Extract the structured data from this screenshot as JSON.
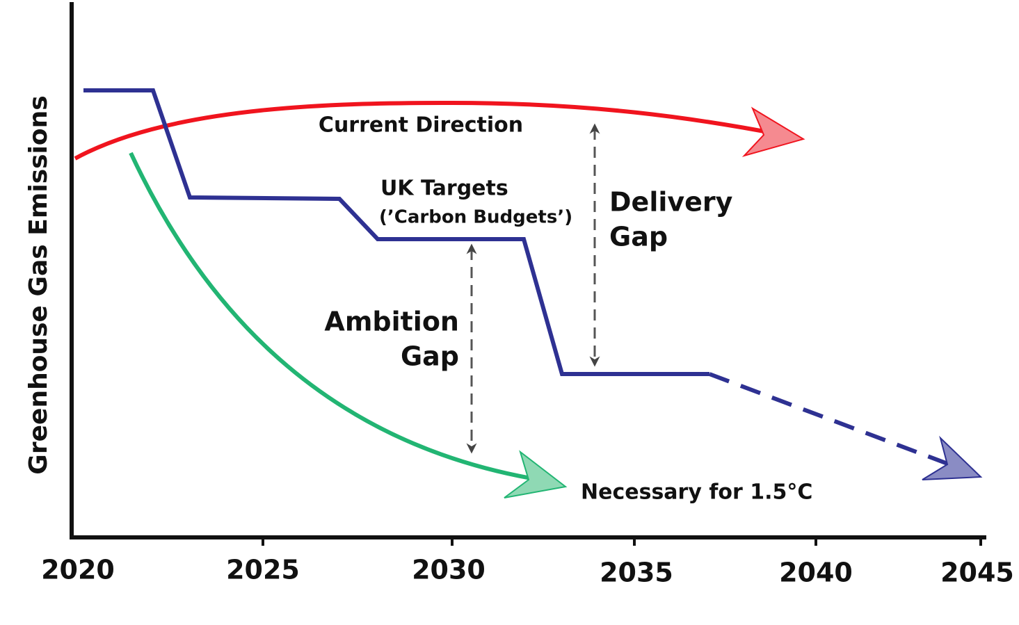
{
  "axis": {
    "y_label": "Greenhouse Gas Emissions",
    "x_ticks": [
      "2020",
      "2025",
      "2030",
      "2035",
      "2040",
      "2045"
    ]
  },
  "lines": [
    {
      "label_lines": [
        "Current Direction"
      ]
    },
    {
      "label_lines": [
        "UK Targets",
        "(’Carbon Budgets’)"
      ]
    },
    {
      "label_lines": [
        "Necessary for 1.5°C"
      ]
    }
  ],
  "gaps": [
    {
      "label_lines": [
        "Delivery",
        "Gap"
      ]
    },
    {
      "label_lines": [
        "Ambition",
        "Gap"
      ]
    }
  ]
}
